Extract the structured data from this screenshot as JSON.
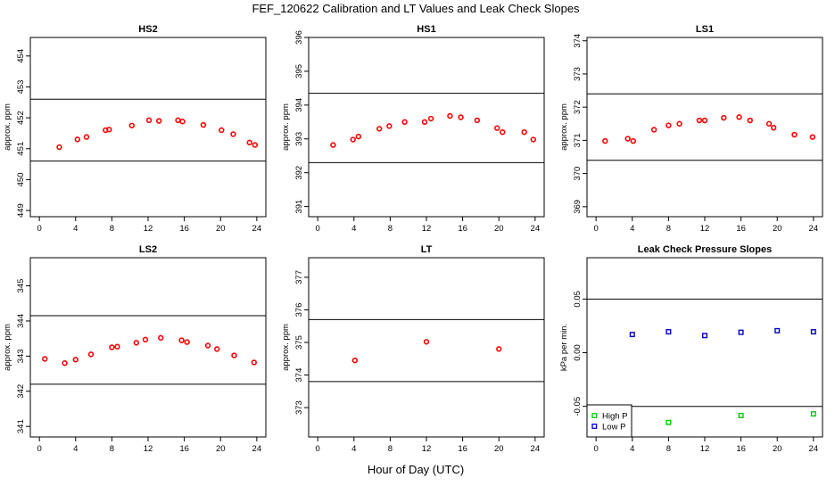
{
  "page": {
    "title": "FEF_120622  Calibration and LT Values and Leak Check Slopes",
    "xlabel": "Hour of Day (UTC)"
  },
  "chart_data": [
    {
      "type": "scatter",
      "title": "HS2",
      "xlabel": "",
      "ylabel": "approx. ppm",
      "xlim": [
        -1,
        25
      ],
      "ylim": [
        448.8,
        454.6
      ],
      "xticks": [
        "0",
        "4",
        "8",
        "12",
        "16",
        "20",
        "24"
      ],
      "yticks": [
        "449",
        "450",
        "451",
        "452",
        "453",
        "454"
      ],
      "hlines": [
        452.6,
        450.6
      ],
      "series": [
        {
          "color": "#ff0000",
          "marker": "circle",
          "x": [
            2.2,
            4.2,
            5.2,
            7.3,
            7.7,
            10.2,
            12.1,
            13.2,
            15.3,
            15.8,
            18.1,
            20.1,
            21.4,
            23.2,
            23.8
          ],
          "y": [
            451.05,
            451.3,
            451.38,
            451.6,
            451.62,
            451.75,
            451.92,
            451.9,
            451.92,
            451.88,
            451.77,
            451.6,
            451.47,
            451.2,
            451.12
          ]
        }
      ]
    },
    {
      "type": "scatter",
      "title": "HS1",
      "xlabel": "",
      "ylabel": "approx. ppm",
      "xlim": [
        -1,
        25
      ],
      "ylim": [
        390.7,
        396.0
      ],
      "xticks": [
        "0",
        "4",
        "8",
        "12",
        "16",
        "20",
        "24"
      ],
      "yticks": [
        "391",
        "392",
        "393",
        "394",
        "395",
        "396"
      ],
      "hlines": [
        394.35,
        392.3
      ],
      "series": [
        {
          "color": "#ff0000",
          "marker": "circle",
          "x": [
            1.7,
            3.9,
            4.5,
            6.8,
            7.9,
            9.6,
            11.8,
            12.5,
            14.6,
            15.8,
            17.6,
            19.8,
            20.4,
            22.8,
            23.8
          ],
          "y": [
            392.82,
            392.98,
            393.07,
            393.3,
            393.38,
            393.5,
            393.5,
            393.6,
            393.68,
            393.64,
            393.55,
            393.32,
            393.2,
            393.2,
            392.98
          ]
        }
      ]
    },
    {
      "type": "scatter",
      "title": "LS1",
      "xlabel": "",
      "ylabel": "approx. ppm",
      "xlim": [
        -1,
        25
      ],
      "ylim": [
        368.7,
        374.1
      ],
      "xticks": [
        "0",
        "4",
        "8",
        "12",
        "16",
        "20",
        "24"
      ],
      "yticks": [
        "369",
        "370",
        "371",
        "372",
        "373",
        "374"
      ],
      "hlines": [
        372.4,
        370.4
      ],
      "series": [
        {
          "color": "#ff0000",
          "marker": "circle",
          "x": [
            1.0,
            3.5,
            4.1,
            6.4,
            8.0,
            9.2,
            11.4,
            12.0,
            14.1,
            15.8,
            17.0,
            19.1,
            19.6,
            21.9,
            23.9
          ],
          "y": [
            370.98,
            371.05,
            370.98,
            371.32,
            371.45,
            371.5,
            371.6,
            371.6,
            371.68,
            371.7,
            371.6,
            371.5,
            371.38,
            371.17,
            371.1
          ]
        }
      ]
    },
    {
      "type": "scatter",
      "title": "LS2",
      "xlabel": "",
      "ylabel": "approx. ppm",
      "xlim": [
        -1,
        25
      ],
      "ylim": [
        340.7,
        345.8
      ],
      "xticks": [
        "0",
        "4",
        "8",
        "12",
        "16",
        "20",
        "24"
      ],
      "yticks": [
        "341",
        "342",
        "343",
        "344",
        "345"
      ],
      "hlines": [
        344.15,
        342.2
      ],
      "series": [
        {
          "color": "#ff0000",
          "marker": "circle",
          "x": [
            0.6,
            2.8,
            4.0,
            5.7,
            8.0,
            8.6,
            10.7,
            11.7,
            13.4,
            15.7,
            16.3,
            18.6,
            19.6,
            21.5,
            23.7
          ],
          "y": [
            342.92,
            342.8,
            342.9,
            343.05,
            343.25,
            343.27,
            343.38,
            343.47,
            343.52,
            343.45,
            343.4,
            343.3,
            343.2,
            343.02,
            342.82
          ]
        }
      ]
    },
    {
      "type": "scatter",
      "title": "LT",
      "xlabel": "",
      "ylabel": "approx. ppm",
      "xlim": [
        -1,
        25
      ],
      "ylim": [
        372.1,
        377.6
      ],
      "xticks": [
        "0",
        "4",
        "8",
        "12",
        "16",
        "20",
        "24"
      ],
      "yticks": [
        "373",
        "374",
        "375",
        "376",
        "377"
      ],
      "hlines": [
        375.7,
        373.8
      ],
      "series": [
        {
          "color": "#ff0000",
          "marker": "circle",
          "x": [
            4.1,
            12.0,
            20.0
          ],
          "y": [
            374.45,
            375.02,
            374.8
          ]
        }
      ]
    },
    {
      "type": "scatter",
      "title": "Leak Check Pressure Slopes",
      "xlabel": "",
      "ylabel": "kPa per min.",
      "xlim": [
        -1,
        25
      ],
      "ylim": [
        -0.0785,
        0.0885
      ],
      "xticks": [
        "0",
        "4",
        "8",
        "12",
        "16",
        "20",
        "24"
      ],
      "yticks": [
        "-0.05",
        "0.00",
        "0.05"
      ],
      "hlines": [
        0.05,
        -0.05
      ],
      "legend": {
        "position": "bottom-left",
        "entries": [
          "High P",
          "Low P"
        ]
      },
      "series": [
        {
          "name": "High P",
          "color": "#00cc00",
          "marker": "square",
          "x": [
            8,
            16,
            24
          ],
          "y": [
            -0.065,
            -0.0585,
            -0.057
          ]
        },
        {
          "name": "Low P",
          "color": "#0000cc",
          "marker": "square",
          "x": [
            4,
            8,
            12,
            16,
            20,
            24
          ],
          "y": [
            0.017,
            0.0195,
            0.016,
            0.019,
            0.0205,
            0.0195
          ]
        }
      ]
    }
  ]
}
